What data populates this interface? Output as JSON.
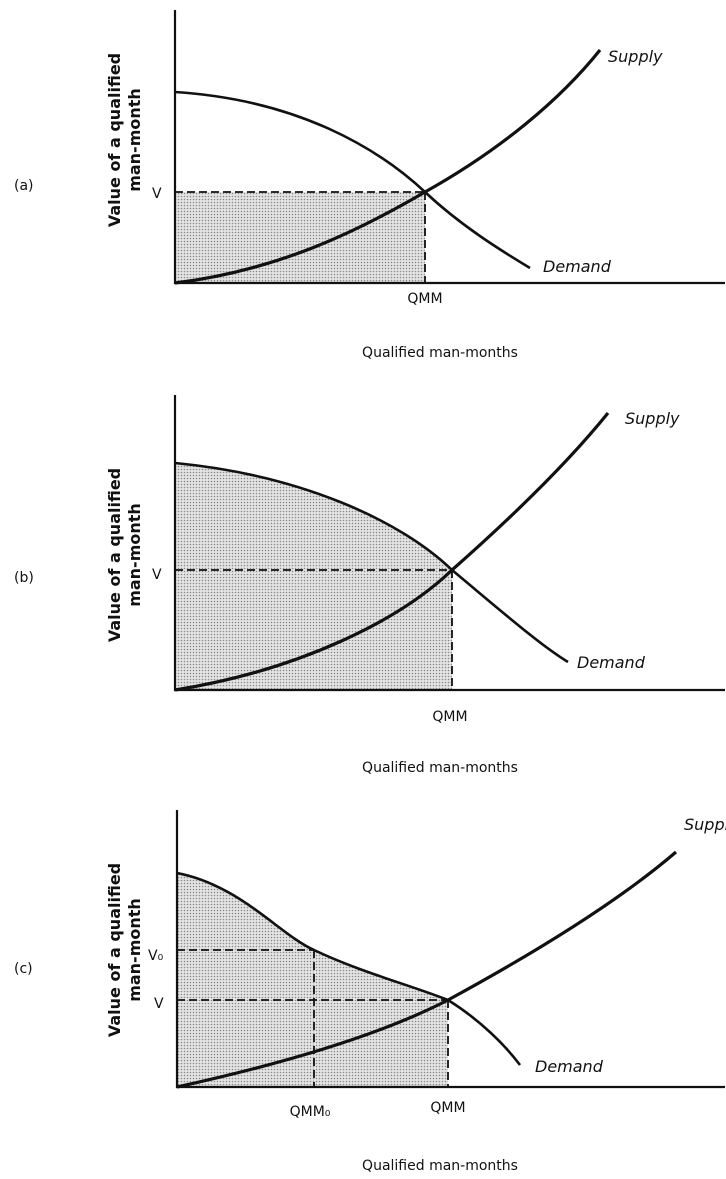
{
  "panels": [
    {
      "label": "(a)",
      "y_axis_label": [
        "Value of a qualified",
        "man-month"
      ],
      "x_axis_label": "Qualified man-months",
      "supply_label": "Supply",
      "demand_label": "Demand",
      "y_ticks": [
        "V"
      ],
      "x_ticks": [
        "QMM"
      ]
    },
    {
      "label": "(b)",
      "y_axis_label": [
        "Value of a qualified",
        "man-month"
      ],
      "x_axis_label": "Qualified man-months",
      "supply_label": "Supply",
      "demand_label": "Demand",
      "y_ticks": [
        "V"
      ],
      "x_ticks": [
        "QMM"
      ]
    },
    {
      "label": "(c)",
      "y_axis_label": [
        "Value of a qualified",
        "man-month"
      ],
      "x_axis_label": "Qualified man-months",
      "supply_label": "Supply",
      "demand_label": "Demand",
      "y_ticks": [
        "V₀",
        "V"
      ],
      "x_ticks": [
        "QMM₀",
        "QMM"
      ]
    }
  ]
}
